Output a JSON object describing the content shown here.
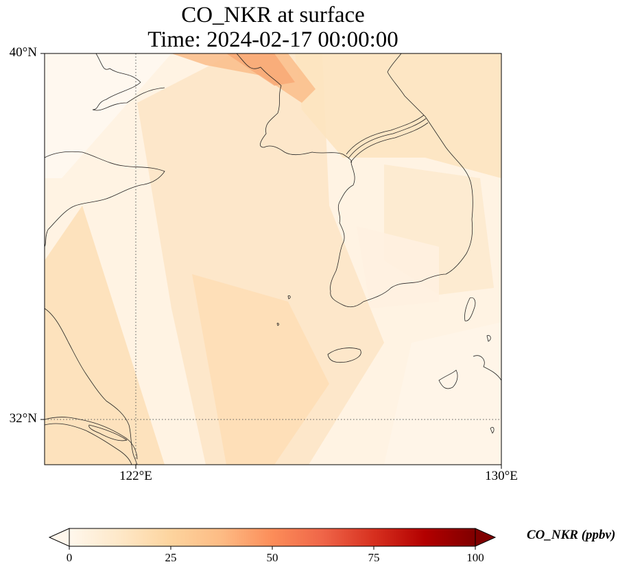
{
  "title": {
    "line1": "CO_NKR at surface",
    "line2": "Time: 2024-02-17 00:00:00"
  },
  "map": {
    "lat_range": [
      31,
      40
    ],
    "lon_range": [
      120,
      130
    ],
    "lat_ticks": [
      {
        "value": 40,
        "label": "40°N"
      },
      {
        "value": 32,
        "label": "32°N"
      }
    ],
    "lon_ticks": [
      {
        "value": 122,
        "label": "122°E"
      },
      {
        "value": 130,
        "label": "130°E"
      }
    ],
    "gridlines": "dotted",
    "coastline_color": "#000000"
  },
  "colorbar": {
    "label": "CO_NKR (ppbv)",
    "colormap": "OrRd",
    "range": [
      0,
      100
    ],
    "extend": "both",
    "ticks": [
      "0",
      "25",
      "50",
      "75",
      "100"
    ],
    "colors": [
      "#fff7ec",
      "#fee8c8",
      "#fdd49e",
      "#fdbb84",
      "#fc8d59",
      "#ef6548",
      "#d7301f",
      "#b30000",
      "#7f0000"
    ]
  },
  "chart_data": {
    "type": "heatmap",
    "variable": "CO_NKR",
    "units": "ppbv",
    "level": "surface",
    "time": "2024-02-17 00:00:00",
    "value_range_shown": [
      0,
      100
    ],
    "description_values": {
      "background": 5,
      "plume_band": 22,
      "korea_peninsula": 20,
      "northwest_high": 35
    }
  }
}
